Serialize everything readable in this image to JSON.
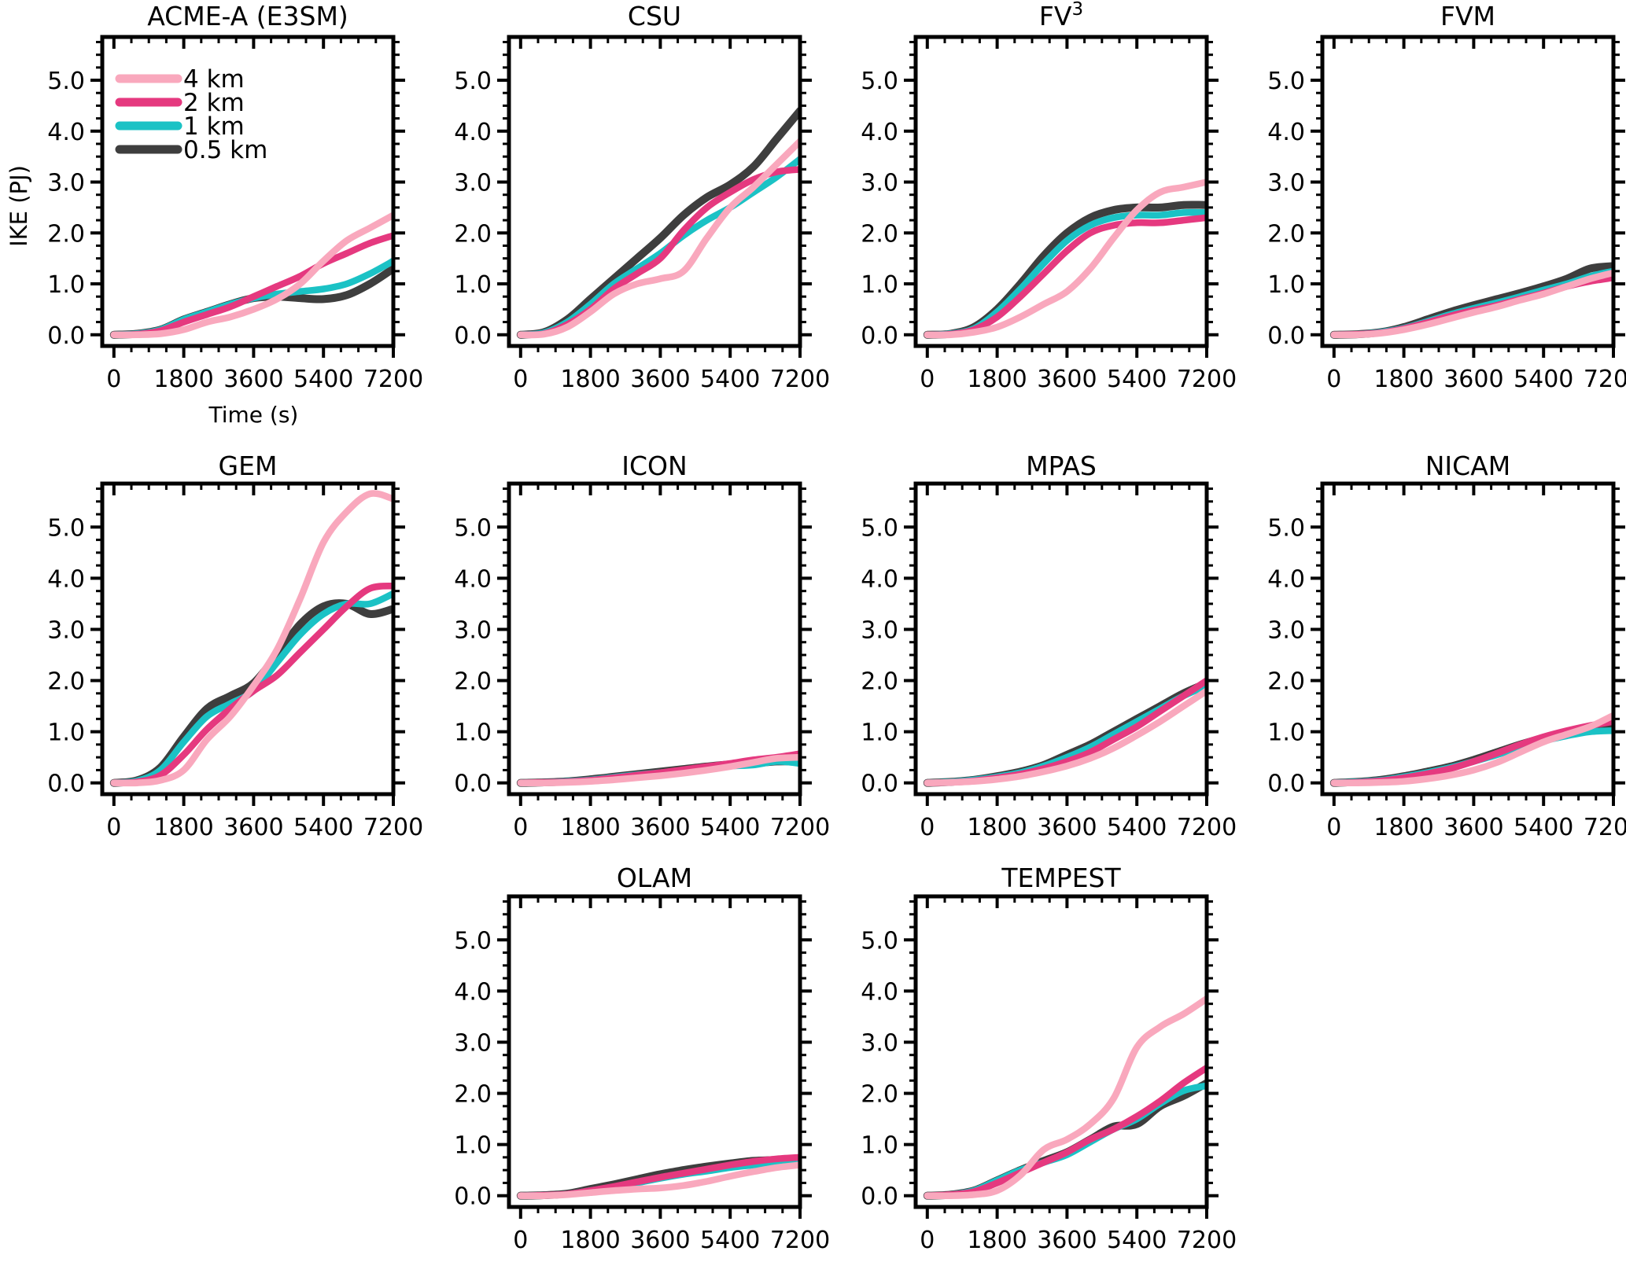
{
  "figure": {
    "ylabel": "IKE (PJ)",
    "xlabel": "Time (s)",
    "legend": [
      {
        "label": "4 km",
        "color": "#F9A8BD"
      },
      {
        "label": "2 km",
        "color": "#E5397F"
      },
      {
        "label": "1 km",
        "color": "#1BC2C5"
      },
      {
        "label": "0.5 km",
        "color": "#3E3E3E"
      }
    ],
    "axis_color": "#000000",
    "x_tick_labels": [
      "0",
      "1800",
      "3600",
      "5400",
      "7200"
    ],
    "x_tick_values": [
      0,
      1800,
      3600,
      5400,
      7200
    ],
    "x_minor_step": 450,
    "y_tick_labels": [
      "0.0",
      "1.0",
      "2.0",
      "3.0",
      "4.0",
      "5.0"
    ],
    "y_tick_values": [
      0,
      1,
      2,
      3,
      4,
      5
    ],
    "y_minor_step": 0.25,
    "x_domain": [
      -300,
      7200
    ],
    "y_domain": [
      -0.22,
      5.85
    ]
  },
  "chart_data": {
    "type": "line",
    "title": "",
    "xlabel": "Time (s)",
    "ylabel": "IKE (PJ)",
    "x": [
      0,
      600,
      1200,
      1800,
      2400,
      3000,
      3600,
      4200,
      4800,
      5400,
      6000,
      6600,
      7200
    ],
    "xlim": [
      0,
      7200
    ],
    "ylim": [
      0,
      5.85
    ],
    "legend_position": "top-left-first-panel",
    "grid": false,
    "panels": [
      {
        "title": "ACME-A (E3SM)",
        "row": 0,
        "col": 0,
        "show_legend": true,
        "show_ylabel": true,
        "show_xlabel": true,
        "series": [
          {
            "name": "0.5 km",
            "values": [
              0,
              0.02,
              0.1,
              0.3,
              0.45,
              0.6,
              0.72,
              0.75,
              0.72,
              0.7,
              0.78,
              1.0,
              1.3
            ]
          },
          {
            "name": "1 km",
            "values": [
              0,
              0.02,
              0.1,
              0.3,
              0.45,
              0.6,
              0.72,
              0.8,
              0.85,
              0.9,
              1.0,
              1.2,
              1.45
            ]
          },
          {
            "name": "2 km",
            "values": [
              0,
              0.01,
              0.08,
              0.25,
              0.4,
              0.55,
              0.75,
              0.95,
              1.15,
              1.4,
              1.6,
              1.8,
              1.95
            ]
          },
          {
            "name": "4 km",
            "values": [
              0,
              0.0,
              0.02,
              0.1,
              0.25,
              0.35,
              0.5,
              0.7,
              1.0,
              1.45,
              1.85,
              2.1,
              2.35
            ]
          }
        ]
      },
      {
        "title": "CSU",
        "row": 0,
        "col": 1,
        "show_legend": false,
        "show_ylabel": false,
        "show_xlabel": false,
        "series": [
          {
            "name": "0.5 km",
            "values": [
              0,
              0.05,
              0.3,
              0.7,
              1.1,
              1.5,
              1.9,
              2.35,
              2.7,
              2.95,
              3.3,
              3.85,
              4.4
            ]
          },
          {
            "name": "1 km",
            "values": [
              0,
              0.04,
              0.25,
              0.6,
              1.0,
              1.3,
              1.6,
              1.95,
              2.25,
              2.5,
              2.8,
              3.1,
              3.45
            ]
          },
          {
            "name": "2 km",
            "values": [
              0,
              0.02,
              0.2,
              0.5,
              0.9,
              1.2,
              1.5,
              2.05,
              2.5,
              2.8,
              3.05,
              3.2,
              3.25
            ]
          },
          {
            "name": "4 km",
            "values": [
              0,
              0.01,
              0.15,
              0.45,
              0.8,
              1.0,
              1.1,
              1.25,
              1.9,
              2.5,
              2.9,
              3.35,
              3.8
            ]
          }
        ]
      },
      {
        "title": "FV",
        "title_sup": "3",
        "row": 0,
        "col": 2,
        "show_legend": false,
        "show_ylabel": false,
        "show_xlabel": false,
        "series": [
          {
            "name": "0.5 km",
            "values": [
              0,
              0.02,
              0.15,
              0.5,
              1.0,
              1.55,
              2.0,
              2.3,
              2.45,
              2.5,
              2.5,
              2.55,
              2.55
            ]
          },
          {
            "name": "1 km",
            "values": [
              0,
              0.02,
              0.12,
              0.45,
              0.9,
              1.4,
              1.85,
              2.15,
              2.3,
              2.35,
              2.35,
              2.4,
              2.4
            ]
          },
          {
            "name": "2 km",
            "values": [
              0,
              0.01,
              0.1,
              0.35,
              0.75,
              1.2,
              1.65,
              2.0,
              2.15,
              2.2,
              2.2,
              2.25,
              2.3
            ]
          },
          {
            "name": "4 km",
            "values": [
              0,
              0.0,
              0.05,
              0.15,
              0.35,
              0.6,
              0.85,
              1.3,
              1.9,
              2.45,
              2.8,
              2.9,
              3.0
            ]
          }
        ]
      },
      {
        "title": "FVM",
        "row": 0,
        "col": 3,
        "show_legend": false,
        "show_ylabel": false,
        "show_xlabel": false,
        "series": [
          {
            "name": "0.5 km",
            "values": [
              0,
              0.01,
              0.05,
              0.15,
              0.3,
              0.45,
              0.58,
              0.7,
              0.82,
              0.95,
              1.1,
              1.3,
              1.35
            ]
          },
          {
            "name": "1 km",
            "values": [
              0,
              0.01,
              0.05,
              0.13,
              0.26,
              0.4,
              0.52,
              0.63,
              0.75,
              0.88,
              1.0,
              1.15,
              1.25
            ]
          },
          {
            "name": "2 km",
            "values": [
              0,
              0.01,
              0.04,
              0.12,
              0.24,
              0.37,
              0.48,
              0.58,
              0.7,
              0.82,
              0.95,
              1.05,
              1.12
            ]
          },
          {
            "name": "4 km",
            "values": [
              0,
              0.0,
              0.03,
              0.1,
              0.2,
              0.32,
              0.44,
              0.55,
              0.68,
              0.8,
              0.95,
              1.1,
              1.22
            ]
          }
        ]
      },
      {
        "title": "GEM",
        "row": 1,
        "col": 0,
        "show_legend": false,
        "show_ylabel": false,
        "show_xlabel": false,
        "series": [
          {
            "name": "0.5 km",
            "values": [
              0,
              0.05,
              0.3,
              0.9,
              1.45,
              1.7,
              1.95,
              2.5,
              3.1,
              3.45,
              3.5,
              3.3,
              3.4
            ]
          },
          {
            "name": "1 km",
            "values": [
              0,
              0.04,
              0.25,
              0.8,
              1.3,
              1.55,
              1.8,
              2.35,
              2.9,
              3.3,
              3.5,
              3.5,
              3.7
            ]
          },
          {
            "name": "2 km",
            "values": [
              0,
              0.02,
              0.15,
              0.55,
              1.05,
              1.45,
              1.8,
              2.1,
              2.55,
              3.0,
              3.45,
              3.8,
              3.85
            ]
          },
          {
            "name": "4 km",
            "values": [
              0,
              0.0,
              0.05,
              0.25,
              0.85,
              1.3,
              1.9,
              2.6,
              3.6,
              4.7,
              5.3,
              5.65,
              5.55
            ]
          }
        ]
      },
      {
        "title": "ICON",
        "row": 1,
        "col": 1,
        "show_legend": false,
        "show_ylabel": false,
        "show_xlabel": false,
        "series": [
          {
            "name": "0.5 km",
            "values": [
              0,
              0.01,
              0.03,
              0.07,
              0.12,
              0.17,
              0.22,
              0.27,
              0.32,
              0.36,
              0.38,
              0.42,
              0.42
            ]
          },
          {
            "name": "1 km",
            "values": [
              0,
              0.01,
              0.03,
              0.06,
              0.11,
              0.16,
              0.2,
              0.25,
              0.29,
              0.33,
              0.35,
              0.42,
              0.38
            ]
          },
          {
            "name": "2 km",
            "values": [
              0,
              0.01,
              0.02,
              0.05,
              0.1,
              0.15,
              0.2,
              0.26,
              0.32,
              0.38,
              0.45,
              0.5,
              0.57
            ]
          },
          {
            "name": "4 km",
            "values": [
              0,
              0.0,
              0.01,
              0.03,
              0.06,
              0.1,
              0.14,
              0.19,
              0.25,
              0.32,
              0.4,
              0.48,
              0.5
            ]
          }
        ]
      },
      {
        "title": "MPAS",
        "row": 1,
        "col": 2,
        "show_legend": false,
        "show_ylabel": false,
        "show_xlabel": false,
        "series": [
          {
            "name": "0.5 km",
            "values": [
              0,
              0.02,
              0.06,
              0.13,
              0.22,
              0.35,
              0.55,
              0.75,
              1.0,
              1.25,
              1.5,
              1.75,
              1.95
            ]
          },
          {
            "name": "1 km",
            "values": [
              0,
              0.02,
              0.06,
              0.12,
              0.2,
              0.33,
              0.5,
              0.7,
              0.95,
              1.2,
              1.45,
              1.7,
              1.9
            ]
          },
          {
            "name": "2 km",
            "values": [
              0,
              0.01,
              0.04,
              0.1,
              0.17,
              0.28,
              0.42,
              0.6,
              0.85,
              1.1,
              1.4,
              1.7,
              2.0
            ]
          },
          {
            "name": "4 km",
            "values": [
              0,
              0.01,
              0.03,
              0.07,
              0.13,
              0.22,
              0.33,
              0.48,
              0.68,
              0.93,
              1.2,
              1.5,
              1.8
            ]
          }
        ]
      },
      {
        "title": "NICAM",
        "row": 1,
        "col": 3,
        "show_legend": false,
        "show_ylabel": false,
        "show_xlabel": false,
        "series": [
          {
            "name": "0.5 km",
            "values": [
              0,
              0.02,
              0.06,
              0.13,
              0.22,
              0.32,
              0.45,
              0.6,
              0.75,
              0.88,
              1.0,
              1.08,
              1.1
            ]
          },
          {
            "name": "1 km",
            "values": [
              0,
              0.02,
              0.05,
              0.12,
              0.2,
              0.3,
              0.42,
              0.55,
              0.7,
              0.82,
              0.92,
              1.0,
              1.02
            ]
          },
          {
            "name": "2 km",
            "values": [
              0,
              0.01,
              0.04,
              0.1,
              0.18,
              0.28,
              0.42,
              0.58,
              0.75,
              0.9,
              1.02,
              1.12,
              1.2
            ]
          },
          {
            "name": "4 km",
            "values": [
              0,
              0.0,
              0.01,
              0.03,
              0.08,
              0.15,
              0.25,
              0.4,
              0.6,
              0.8,
              0.95,
              1.1,
              1.32
            ]
          }
        ]
      },
      {
        "title": "OLAM",
        "row": 2,
        "col": 1,
        "show_legend": false,
        "show_ylabel": false,
        "show_xlabel": false,
        "series": [
          {
            "name": "0.5 km",
            "values": [
              0,
              0.01,
              0.04,
              0.13,
              0.22,
              0.32,
              0.42,
              0.5,
              0.57,
              0.63,
              0.68,
              0.7,
              0.72
            ]
          },
          {
            "name": "1 km",
            "values": [
              0,
              0.01,
              0.03,
              0.1,
              0.17,
              0.25,
              0.34,
              0.42,
              0.48,
              0.55,
              0.6,
              0.65,
              0.7
            ]
          },
          {
            "name": "2 km",
            "values": [
              0,
              0.01,
              0.03,
              0.1,
              0.18,
              0.27,
              0.36,
              0.44,
              0.52,
              0.6,
              0.67,
              0.72,
              0.75
            ]
          },
          {
            "name": "4 km",
            "values": [
              0,
              0.0,
              0.02,
              0.06,
              0.1,
              0.13,
              0.15,
              0.2,
              0.28,
              0.38,
              0.47,
              0.55,
              0.6
            ]
          }
        ]
      },
      {
        "title": "TEMPEST",
        "row": 2,
        "col": 2,
        "show_legend": false,
        "show_ylabel": false,
        "show_xlabel": false,
        "series": [
          {
            "name": "0.5 km",
            "values": [
              0,
              0.02,
              0.1,
              0.3,
              0.5,
              0.68,
              0.85,
              1.1,
              1.35,
              1.4,
              1.75,
              1.95,
              2.2
            ]
          },
          {
            "name": "1 km",
            "values": [
              0,
              0.02,
              0.1,
              0.3,
              0.5,
              0.65,
              0.8,
              1.05,
              1.3,
              1.5,
              1.8,
              2.05,
              2.15
            ]
          },
          {
            "name": "2 km",
            "values": [
              0,
              0.02,
              0.08,
              0.25,
              0.45,
              0.65,
              0.85,
              1.1,
              1.3,
              1.55,
              1.85,
              2.2,
              2.5
            ]
          },
          {
            "name": "4 km",
            "values": [
              0,
              0.0,
              0.02,
              0.1,
              0.4,
              0.9,
              1.1,
              1.4,
              1.9,
              2.9,
              3.3,
              3.55,
              3.85
            ]
          }
        ]
      }
    ]
  }
}
